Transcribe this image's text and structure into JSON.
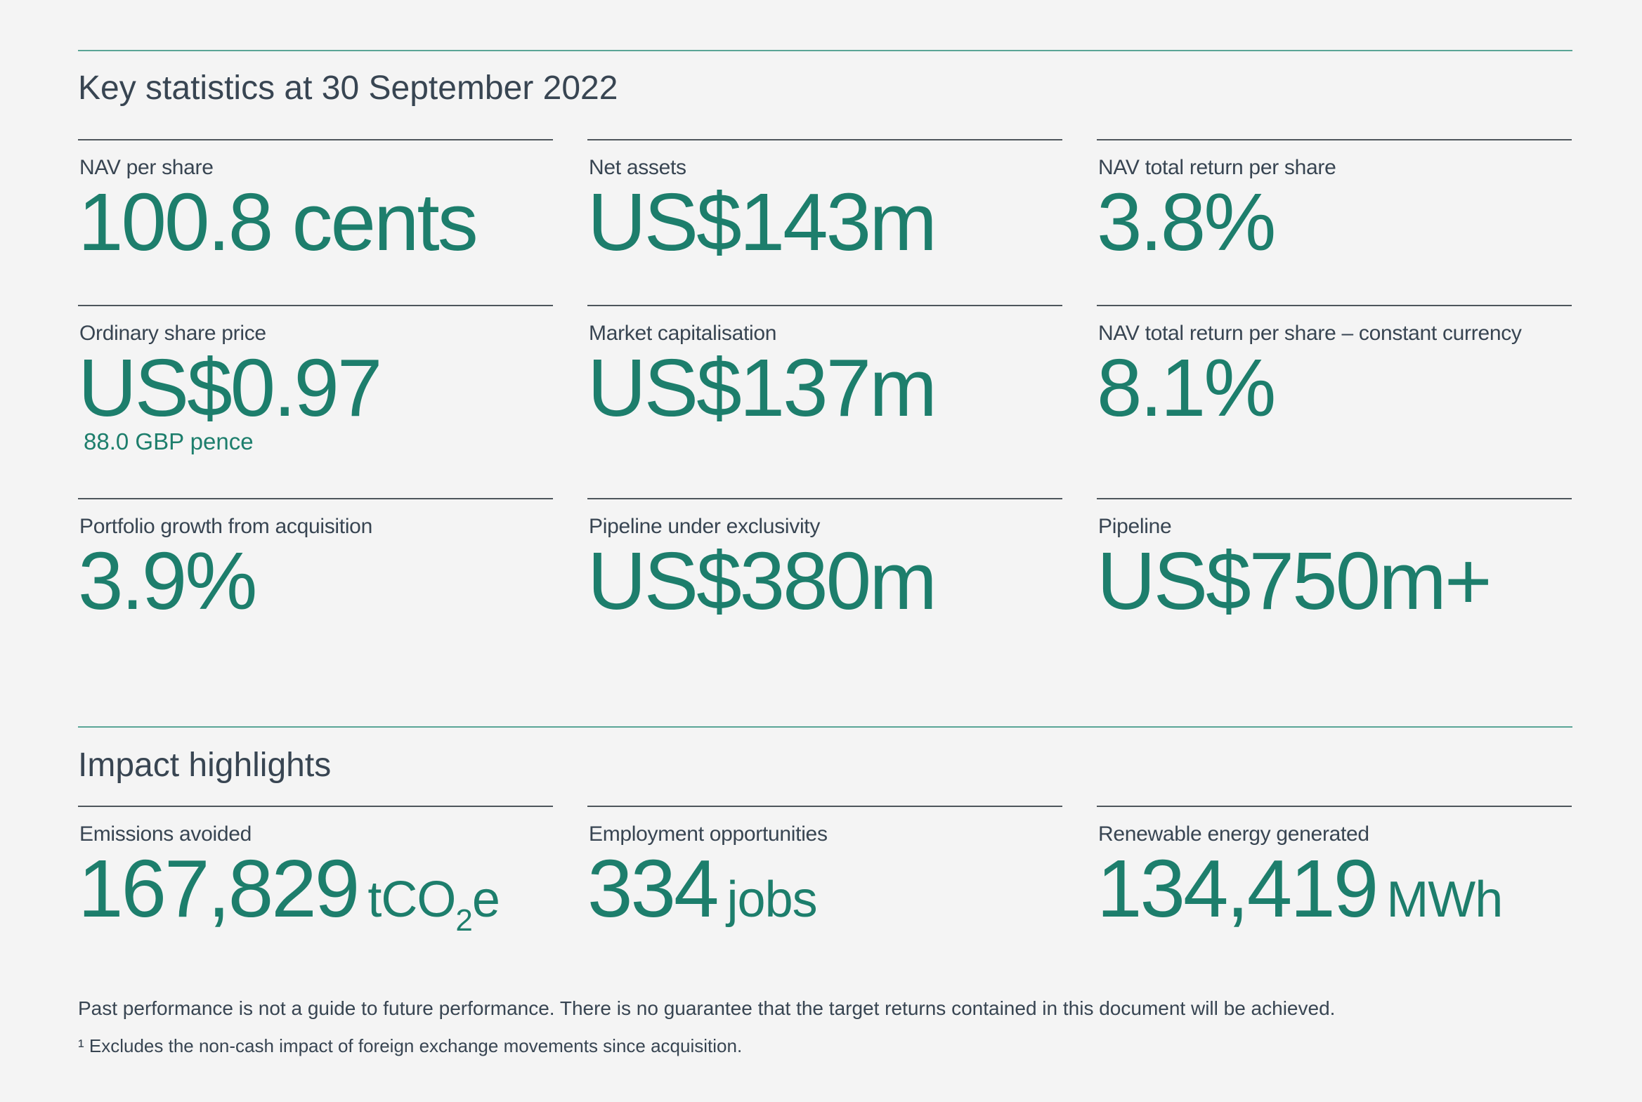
{
  "key_stats": {
    "title": "Key statistics at 30 September 2022",
    "items": [
      {
        "label": "NAV per share",
        "value": "100.8 cents",
        "sub": ""
      },
      {
        "label": "Net assets",
        "value": "US$143m",
        "sub": ""
      },
      {
        "label": "NAV total return per share",
        "value": "3.8%",
        "sub": ""
      },
      {
        "label": "Ordinary share price",
        "value": "US$0.97",
        "sub": "88.0 GBP pence"
      },
      {
        "label": "Market capitalisation",
        "value": "US$137m",
        "sub": ""
      },
      {
        "label": "NAV total return per share – constant currency",
        "value": "8.1%",
        "sub": ""
      },
      {
        "label": "Portfolio growth from acquisition",
        "value": "3.9%",
        "sub": ""
      },
      {
        "label": "Pipeline under exclusivity",
        "value": "US$380m",
        "sub": ""
      },
      {
        "label": "Pipeline",
        "value": "US$750m+",
        "sub": ""
      }
    ]
  },
  "impact": {
    "title": "Impact highlights",
    "items": [
      {
        "label": "Emissions avoided",
        "value": "167,829",
        "unit_main": "tCO",
        "unit_sub": "2",
        "unit_end": "e"
      },
      {
        "label": "Employment opportunities",
        "value": "334",
        "unit_main": "jobs",
        "unit_sub": "",
        "unit_end": ""
      },
      {
        "label": "Renewable energy generated",
        "value": "134,419",
        "unit_main": "MWh",
        "unit_sub": "",
        "unit_end": ""
      }
    ]
  },
  "footer": {
    "disclaimer": "Past performance is not a guide to future performance. There is no guarantee that the target returns contained in this document will be achieved.",
    "footnote": "¹ Excludes the non-cash impact of foreign exchange movements since acquisition."
  }
}
